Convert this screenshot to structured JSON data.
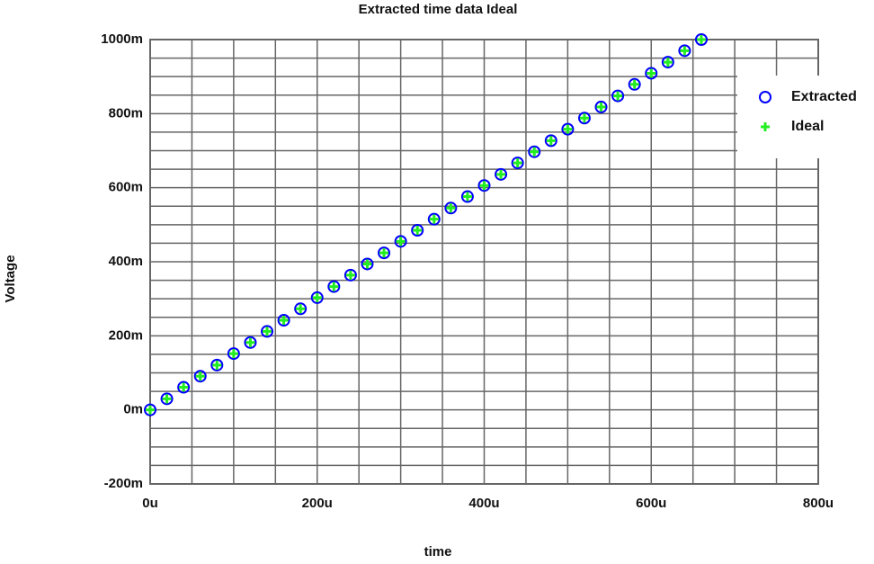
{
  "chart_data": {
    "type": "scatter",
    "title": "Extracted time data Ideal",
    "xlabel": "time",
    "ylabel": "Voltage",
    "x": [
      0,
      20,
      40,
      60,
      80,
      100,
      120,
      140,
      160,
      180,
      200,
      220,
      240,
      260,
      280,
      300,
      320,
      340,
      360,
      380,
      400,
      420,
      440,
      460,
      480,
      500,
      520,
      540,
      560,
      580,
      600,
      620,
      640,
      660
    ],
    "series": [
      {
        "name": "Extracted",
        "color": "#0000ff",
        "marker": "circle",
        "values": [
          0,
          30,
          61,
          91,
          121,
          152,
          182,
          212,
          242,
          273,
          303,
          333,
          364,
          394,
          424,
          455,
          485,
          515,
          545,
          576,
          606,
          636,
          667,
          697,
          727,
          758,
          788,
          818,
          848,
          879,
          909,
          939,
          970,
          1000
        ]
      },
      {
        "name": "Ideal",
        "color": "#22ee22",
        "marker": "plus",
        "values": [
          0,
          30,
          61,
          91,
          121,
          152,
          182,
          212,
          242,
          273,
          303,
          333,
          364,
          394,
          424,
          455,
          485,
          515,
          545,
          576,
          606,
          636,
          667,
          697,
          727,
          758,
          788,
          818,
          848,
          879,
          909,
          939,
          970,
          1000
        ]
      }
    ],
    "xlim": [
      0,
      800
    ],
    "xticks": [
      {
        "value": 0,
        "label": "0u"
      },
      {
        "value": 200,
        "label": "200u"
      },
      {
        "value": 400,
        "label": "400u"
      },
      {
        "value": 600,
        "label": "600u"
      },
      {
        "value": 800,
        "label": "800u"
      }
    ],
    "ylim": [
      -200,
      1000
    ],
    "yticks": [
      {
        "value": -200,
        "label": "-200m"
      },
      {
        "value": 0,
        "label": "0m"
      },
      {
        "value": 200,
        "label": "200m"
      },
      {
        "value": 400,
        "label": "400m"
      },
      {
        "value": 600,
        "label": "600m"
      },
      {
        "value": 800,
        "label": "800m"
      },
      {
        "value": 1000,
        "label": "1000m"
      }
    ],
    "grid": true,
    "legend": "upper right"
  }
}
